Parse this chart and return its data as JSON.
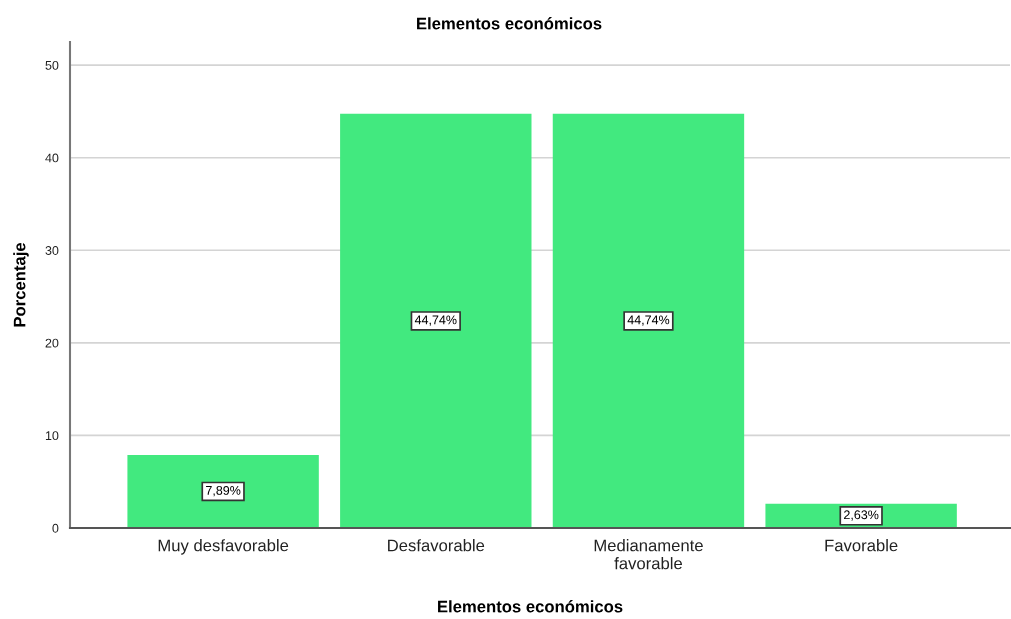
{
  "chart_data": {
    "type": "bar",
    "title": "Elementos económicos",
    "xlabel": "Elementos económicos",
    "ylabel": "Porcentaje",
    "categories": [
      "Muy desfavorable",
      "Desfavorable",
      "Medianamente\nfavorable",
      "Favorable"
    ],
    "values": [
      7.89,
      44.74,
      44.74,
      2.63
    ],
    "value_labels": [
      "7,89%",
      "44,74%",
      "44,74%",
      "2,63%"
    ],
    "color": "#42e97f",
    "ylim": [
      0,
      52.5
    ],
    "yticks": [
      0,
      10,
      20,
      30,
      40,
      50
    ],
    "grid": "y",
    "legend": false
  }
}
